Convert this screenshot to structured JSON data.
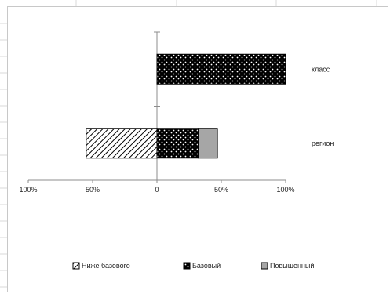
{
  "chart_data": {
    "type": "bar",
    "orientation": "horizontal",
    "stacked": true,
    "categories": [
      "класс",
      "регион"
    ],
    "series": [
      {
        "name": "Ниже базового",
        "values": [
          0,
          -55
        ],
        "pattern": "diagonal-hatch",
        "color": "#ffffff"
      },
      {
        "name": "Базовый",
        "values": [
          100,
          32
        ],
        "pattern": "dots",
        "color": "#000000"
      },
      {
        "name": "Повышенный",
        "values": [
          0,
          15
        ],
        "pattern": "solid",
        "color": "#a6a6a6"
      }
    ],
    "x_ticks": [
      "100%",
      "50%",
      "0",
      "50%",
      "100%"
    ],
    "xlim": [
      -100,
      100
    ],
    "legend_position": "bottom",
    "grid": false
  }
}
